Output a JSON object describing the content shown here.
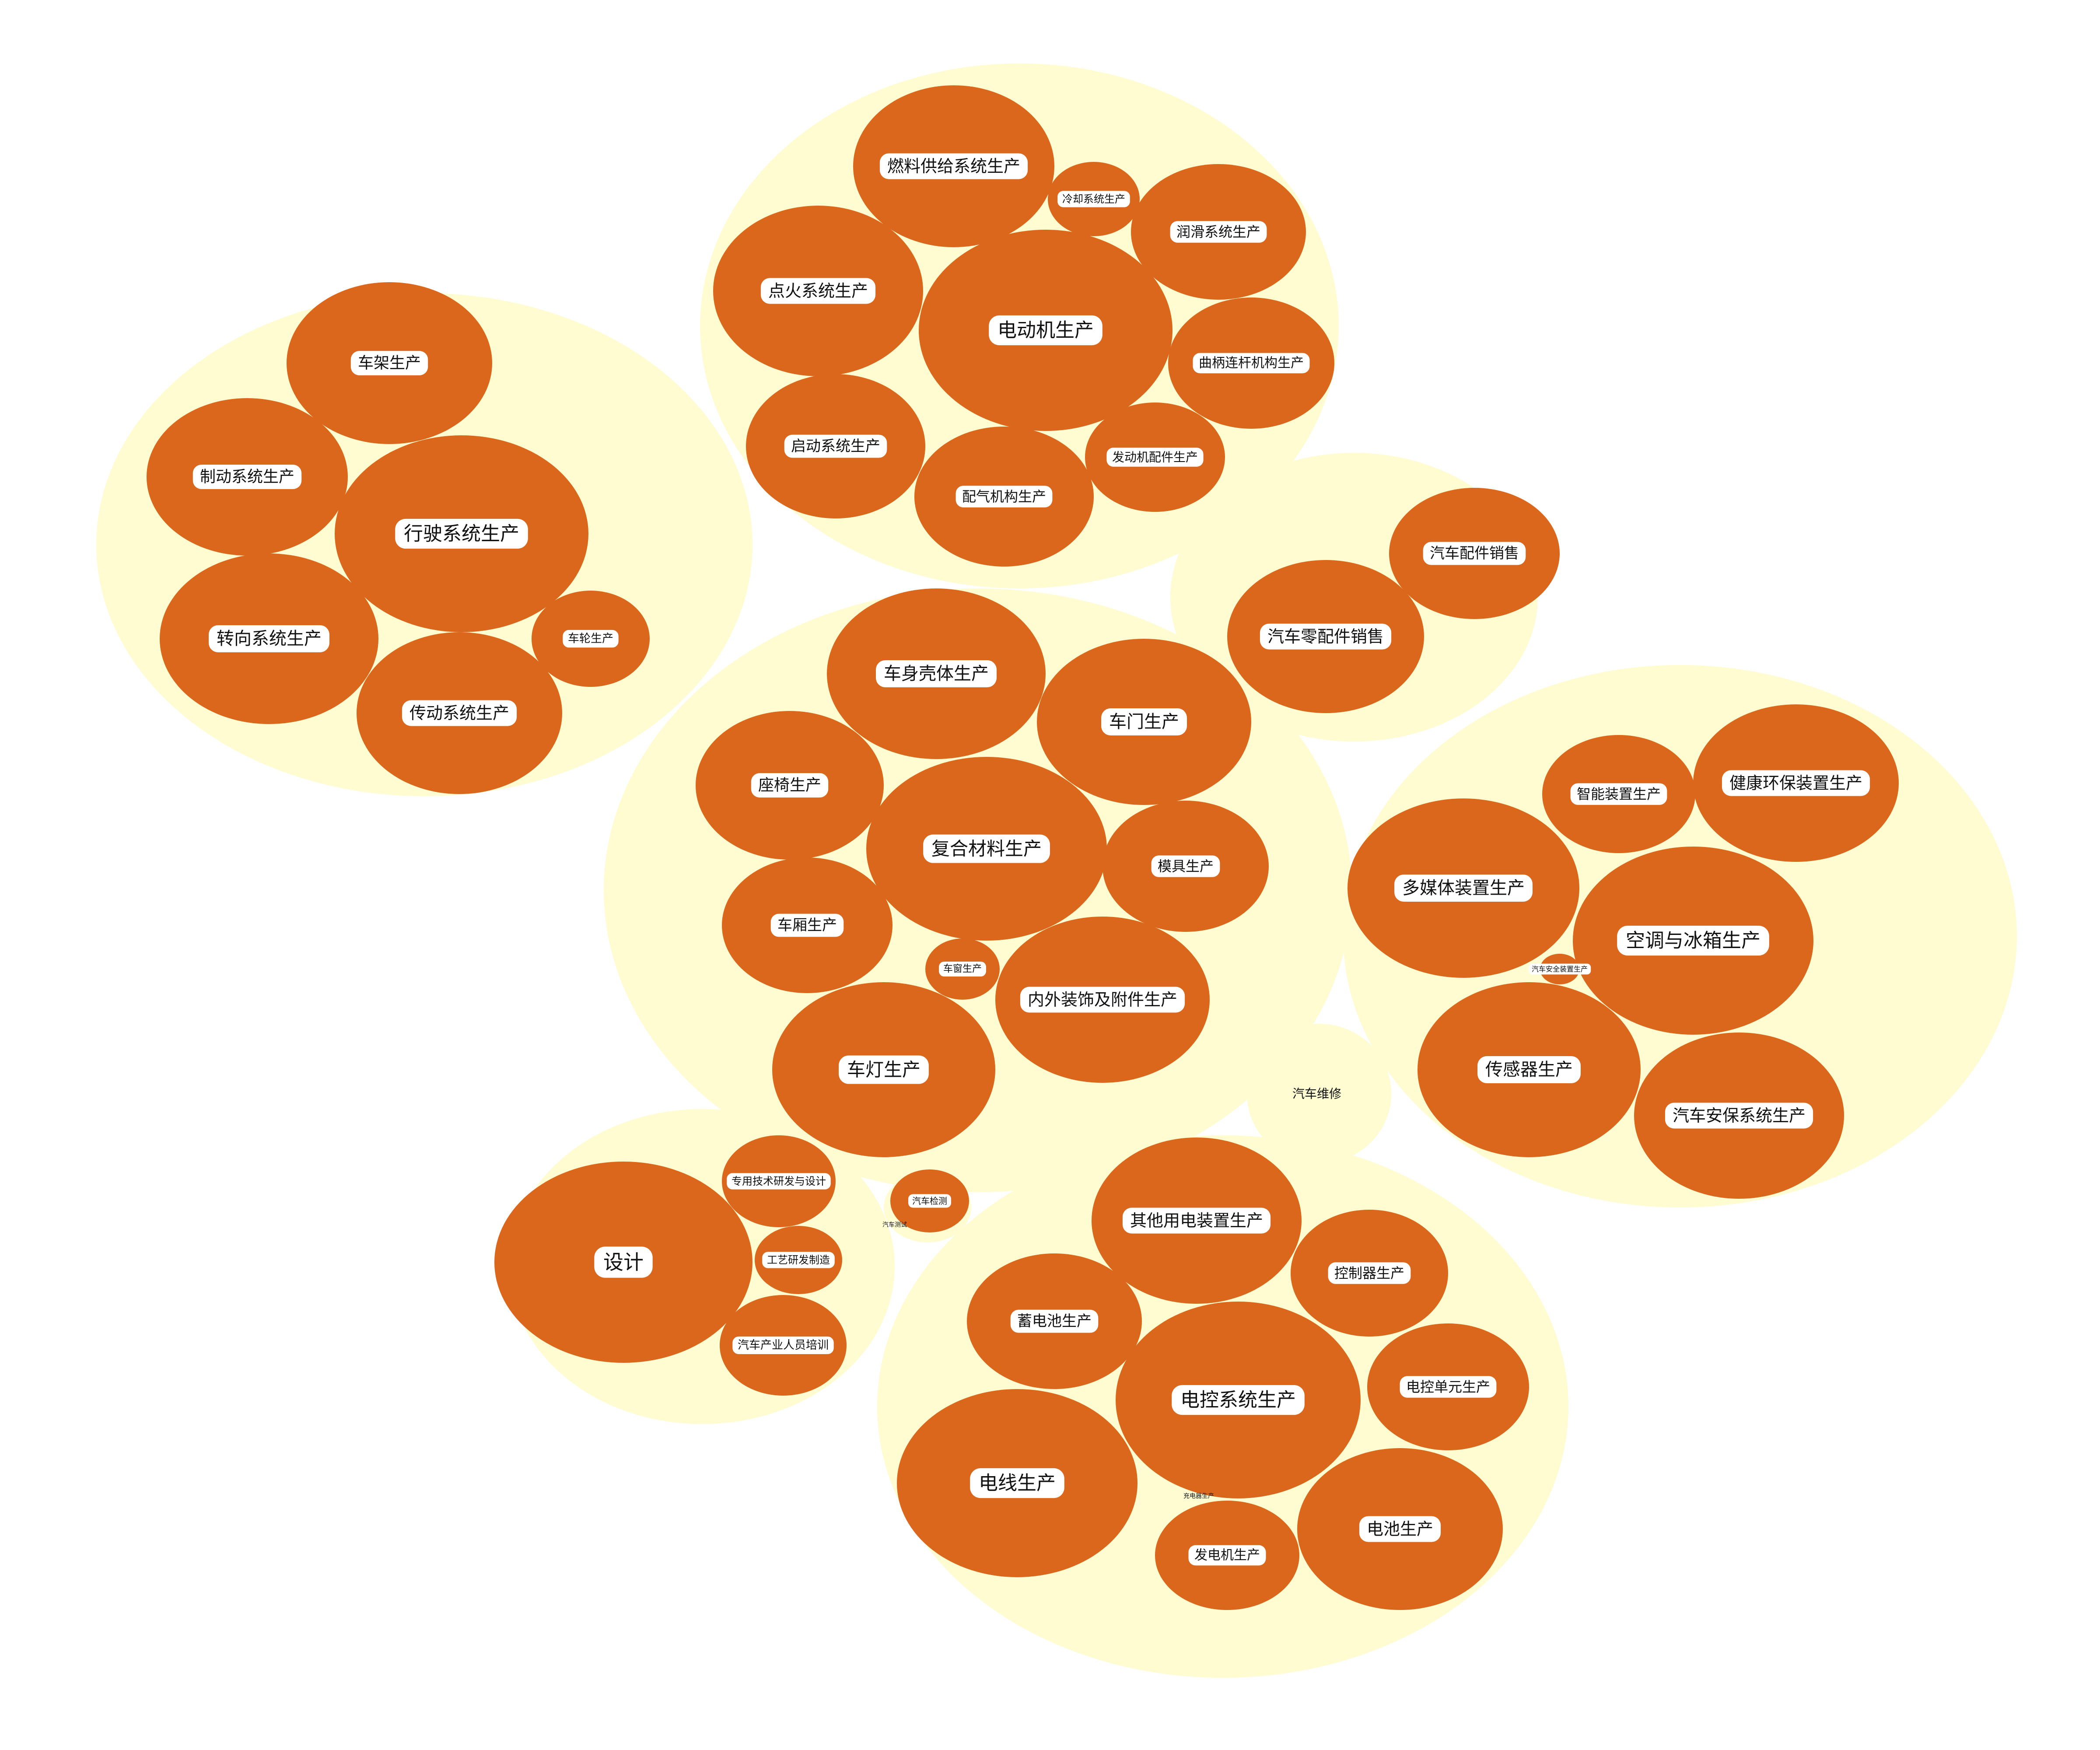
{
  "colors": {
    "background": "#ffffff",
    "group_fill": "#fefcd0",
    "bubble_fill": "#da671c",
    "label_fill": "#ffffff",
    "label_text": "#111111"
  },
  "groups": [
    {
      "id": "chassis",
      "bubbles": [
        {
          "id": "frame",
          "label": "车架生产"
        },
        {
          "id": "brake",
          "label": "制动系统生产"
        },
        {
          "id": "running",
          "label": "行驶系统生产"
        },
        {
          "id": "steering",
          "label": "转向系统生产"
        },
        {
          "id": "transmission",
          "label": "传动系统生产"
        },
        {
          "id": "wheel",
          "label": "车轮生产"
        }
      ]
    },
    {
      "id": "engine",
      "bubbles": [
        {
          "id": "fuel",
          "label": "燃料供给系统生产"
        },
        {
          "id": "cooling",
          "label": "冷却系统生产"
        },
        {
          "id": "lubrication",
          "label": "润滑系统生产"
        },
        {
          "id": "ignition",
          "label": "点火系统生产"
        },
        {
          "id": "motor",
          "label": "电动机生产"
        },
        {
          "id": "crank",
          "label": "曲柄连杆机构生产"
        },
        {
          "id": "starter",
          "label": "启动系统生产"
        },
        {
          "id": "engine-parts",
          "label": "发动机配件生产"
        },
        {
          "id": "valve",
          "label": "配气机构生产"
        }
      ]
    },
    {
      "id": "sales",
      "bubbles": [
        {
          "id": "accessory-sales",
          "label": "汽车配件销售"
        },
        {
          "id": "parts-sales",
          "label": "汽车零配件销售"
        }
      ]
    },
    {
      "id": "body",
      "bubbles": [
        {
          "id": "shell",
          "label": "车身壳体生产"
        },
        {
          "id": "door",
          "label": "车门生产"
        },
        {
          "id": "seat",
          "label": "座椅生产"
        },
        {
          "id": "composite",
          "label": "复合材料生产"
        },
        {
          "id": "mold",
          "label": "模具生产"
        },
        {
          "id": "compartment",
          "label": "车厢生产"
        },
        {
          "id": "window",
          "label": "车窗生产"
        },
        {
          "id": "trim",
          "label": "内外装饰及附件生产"
        },
        {
          "id": "lamp",
          "label": "车灯生产"
        }
      ]
    },
    {
      "id": "devices",
      "bubbles": [
        {
          "id": "smart",
          "label": "智能装置生产"
        },
        {
          "id": "health",
          "label": "健康环保装置生产"
        },
        {
          "id": "multimedia",
          "label": "多媒体装置生产"
        },
        {
          "id": "ac",
          "label": "空调与冰箱生产"
        },
        {
          "id": "safety-device",
          "label": "汽车安全装置生产"
        },
        {
          "id": "sensor",
          "label": "传感器生产"
        },
        {
          "id": "security",
          "label": "汽车安保系统生产"
        }
      ]
    },
    {
      "id": "repair",
      "bubbles": [
        {
          "id": "repair",
          "label": "汽车维修"
        }
      ]
    },
    {
      "id": "design",
      "bubbles": [
        {
          "id": "design",
          "label": "设计"
        },
        {
          "id": "rnd",
          "label": "专用技术研发与设计"
        },
        {
          "id": "process",
          "label": "工艺研发制造"
        },
        {
          "id": "training",
          "label": "汽车产业人员培训"
        }
      ]
    },
    {
      "id": "testing",
      "bubbles": [
        {
          "id": "inspection",
          "label": "汽车检测"
        },
        {
          "id": "test",
          "label": "汽车测试"
        }
      ]
    },
    {
      "id": "electrical",
      "bubbles": [
        {
          "id": "other-electric",
          "label": "其他用电装置生产"
        },
        {
          "id": "controller",
          "label": "控制器生产"
        },
        {
          "id": "battery-storage",
          "label": "蓄电池生产"
        },
        {
          "id": "ecs",
          "label": "电控系统生产"
        },
        {
          "id": "ecu",
          "label": "电控单元生产"
        },
        {
          "id": "wire",
          "label": "电线生产"
        },
        {
          "id": "charger",
          "label": "充电器生产"
        },
        {
          "id": "battery",
          "label": "电池生产"
        },
        {
          "id": "generator",
          "label": "发电机生产"
        }
      ]
    }
  ]
}
